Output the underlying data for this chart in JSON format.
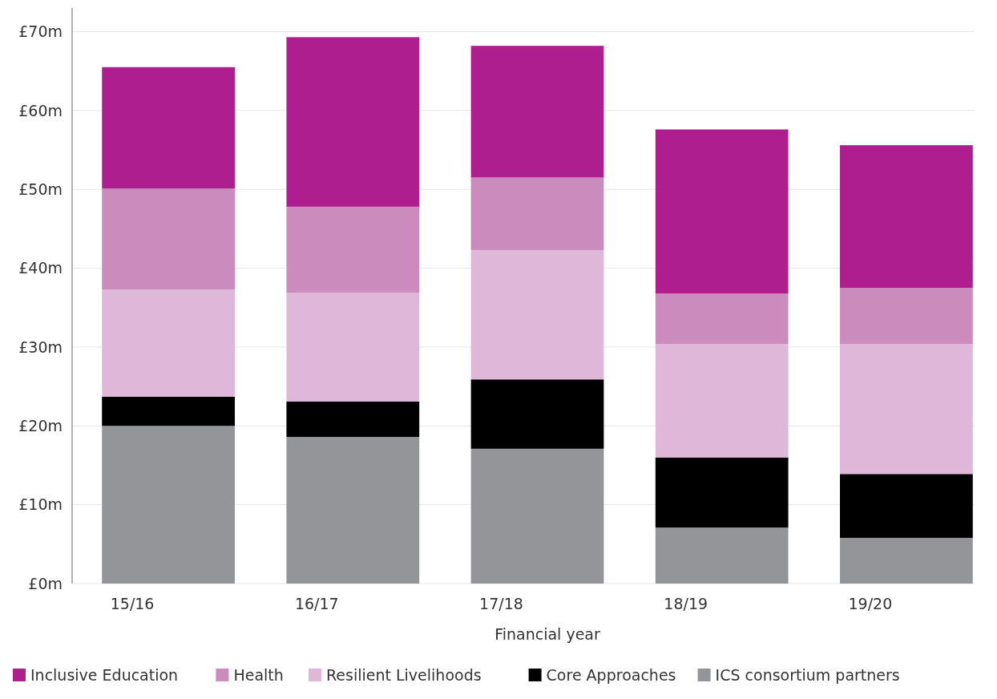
{
  "chart_data": {
    "type": "bar",
    "stacked": true,
    "xlabel": "Financial year",
    "categories": [
      "15/16",
      "16/17",
      "17/18",
      "18/19",
      "19/20"
    ],
    "series": [
      {
        "name": "ICS consortium partners",
        "color": "#939598",
        "values": [
          20.0,
          18.6,
          17.1,
          7.1,
          5.8
        ]
      },
      {
        "name": "Core Approaches",
        "color": "#000000",
        "values": [
          3.7,
          4.5,
          8.8,
          8.9,
          8.1
        ]
      },
      {
        "name": "Resilient Livelihoods",
        "color": "#dfb7d9",
        "values": [
          13.6,
          13.8,
          16.4,
          14.4,
          16.5
        ]
      },
      {
        "name": "Health",
        "color": "#cc8bbd",
        "values": [
          12.8,
          10.9,
          9.2,
          6.4,
          7.1
        ]
      },
      {
        "name": "Inclusive Education",
        "color": "#ae1e8f",
        "values": [
          15.4,
          21.5,
          16.7,
          20.8,
          18.1
        ]
      }
    ],
    "ylim": [
      0,
      73
    ],
    "yticks": [
      {
        "value": 0,
        "label": "£0m"
      },
      {
        "value": 10,
        "label": "£10m"
      },
      {
        "value": 20,
        "label": "£20m"
      },
      {
        "value": 30,
        "label": "£30m"
      },
      {
        "value": 40,
        "label": "£40m"
      },
      {
        "value": 50,
        "label": "£50m"
      },
      {
        "value": 60,
        "label": "£60m"
      },
      {
        "value": 70,
        "label": "£70m"
      }
    ],
    "grid": "y",
    "legend": "bottom"
  }
}
